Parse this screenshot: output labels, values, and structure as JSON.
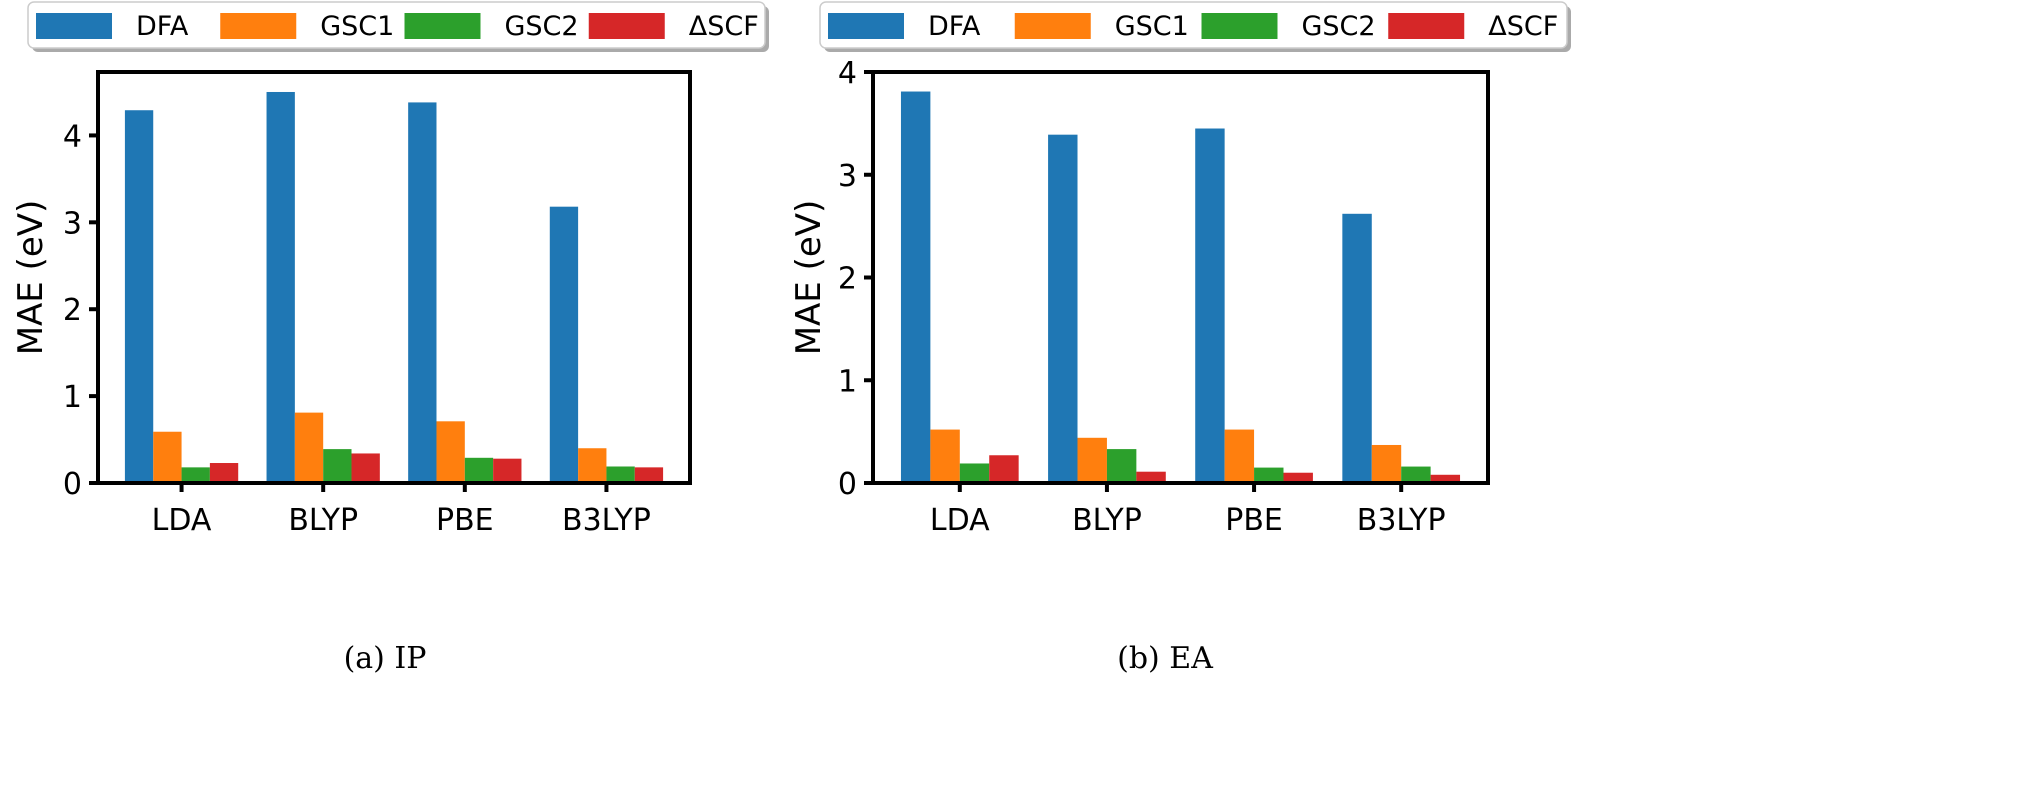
{
  "chart_data": [
    {
      "type": "bar",
      "title": "",
      "caption": "(a) IP",
      "xlabel": "",
      "ylabel": "MAE (eV)",
      "ylim": [
        0,
        4.73
      ],
      "yticks": [
        0,
        1,
        2,
        3,
        4
      ],
      "categories": [
        "LDA",
        "BLYP",
        "PBE",
        "B3LYP"
      ],
      "legend_position": "top",
      "series": [
        {
          "name": "DFA",
          "color": "#1f77b4",
          "values": [
            4.29,
            4.5,
            4.38,
            3.18
          ]
        },
        {
          "name": "GSC1",
          "color": "#ff7f0e",
          "values": [
            0.59,
            0.81,
            0.71,
            0.4
          ]
        },
        {
          "name": "GSC2",
          "color": "#2ca02c",
          "values": [
            0.18,
            0.39,
            0.29,
            0.19
          ]
        },
        {
          "name": "ΔSCF",
          "color": "#d62728",
          "values": [
            0.23,
            0.34,
            0.28,
            0.18
          ]
        }
      ]
    },
    {
      "type": "bar",
      "title": "",
      "caption": "(b) EA",
      "xlabel": "",
      "ylabel": "MAE (eV)",
      "ylim": [
        0,
        4
      ],
      "yticks": [
        0,
        1,
        2,
        3,
        4
      ],
      "categories": [
        "LDA",
        "BLYP",
        "PBE",
        "B3LYP"
      ],
      "legend_position": "top",
      "series": [
        {
          "name": "DFA",
          "color": "#1f77b4",
          "values": [
            3.81,
            3.39,
            3.45,
            2.62
          ]
        },
        {
          "name": "GSC1",
          "color": "#ff7f0e",
          "values": [
            0.52,
            0.44,
            0.52,
            0.37
          ]
        },
        {
          "name": "GSC2",
          "color": "#2ca02c",
          "values": [
            0.19,
            0.33,
            0.15,
            0.16
          ]
        },
        {
          "name": "ΔSCF",
          "color": "#d62728",
          "values": [
            0.27,
            0.11,
            0.1,
            0.08
          ]
        }
      ]
    }
  ]
}
